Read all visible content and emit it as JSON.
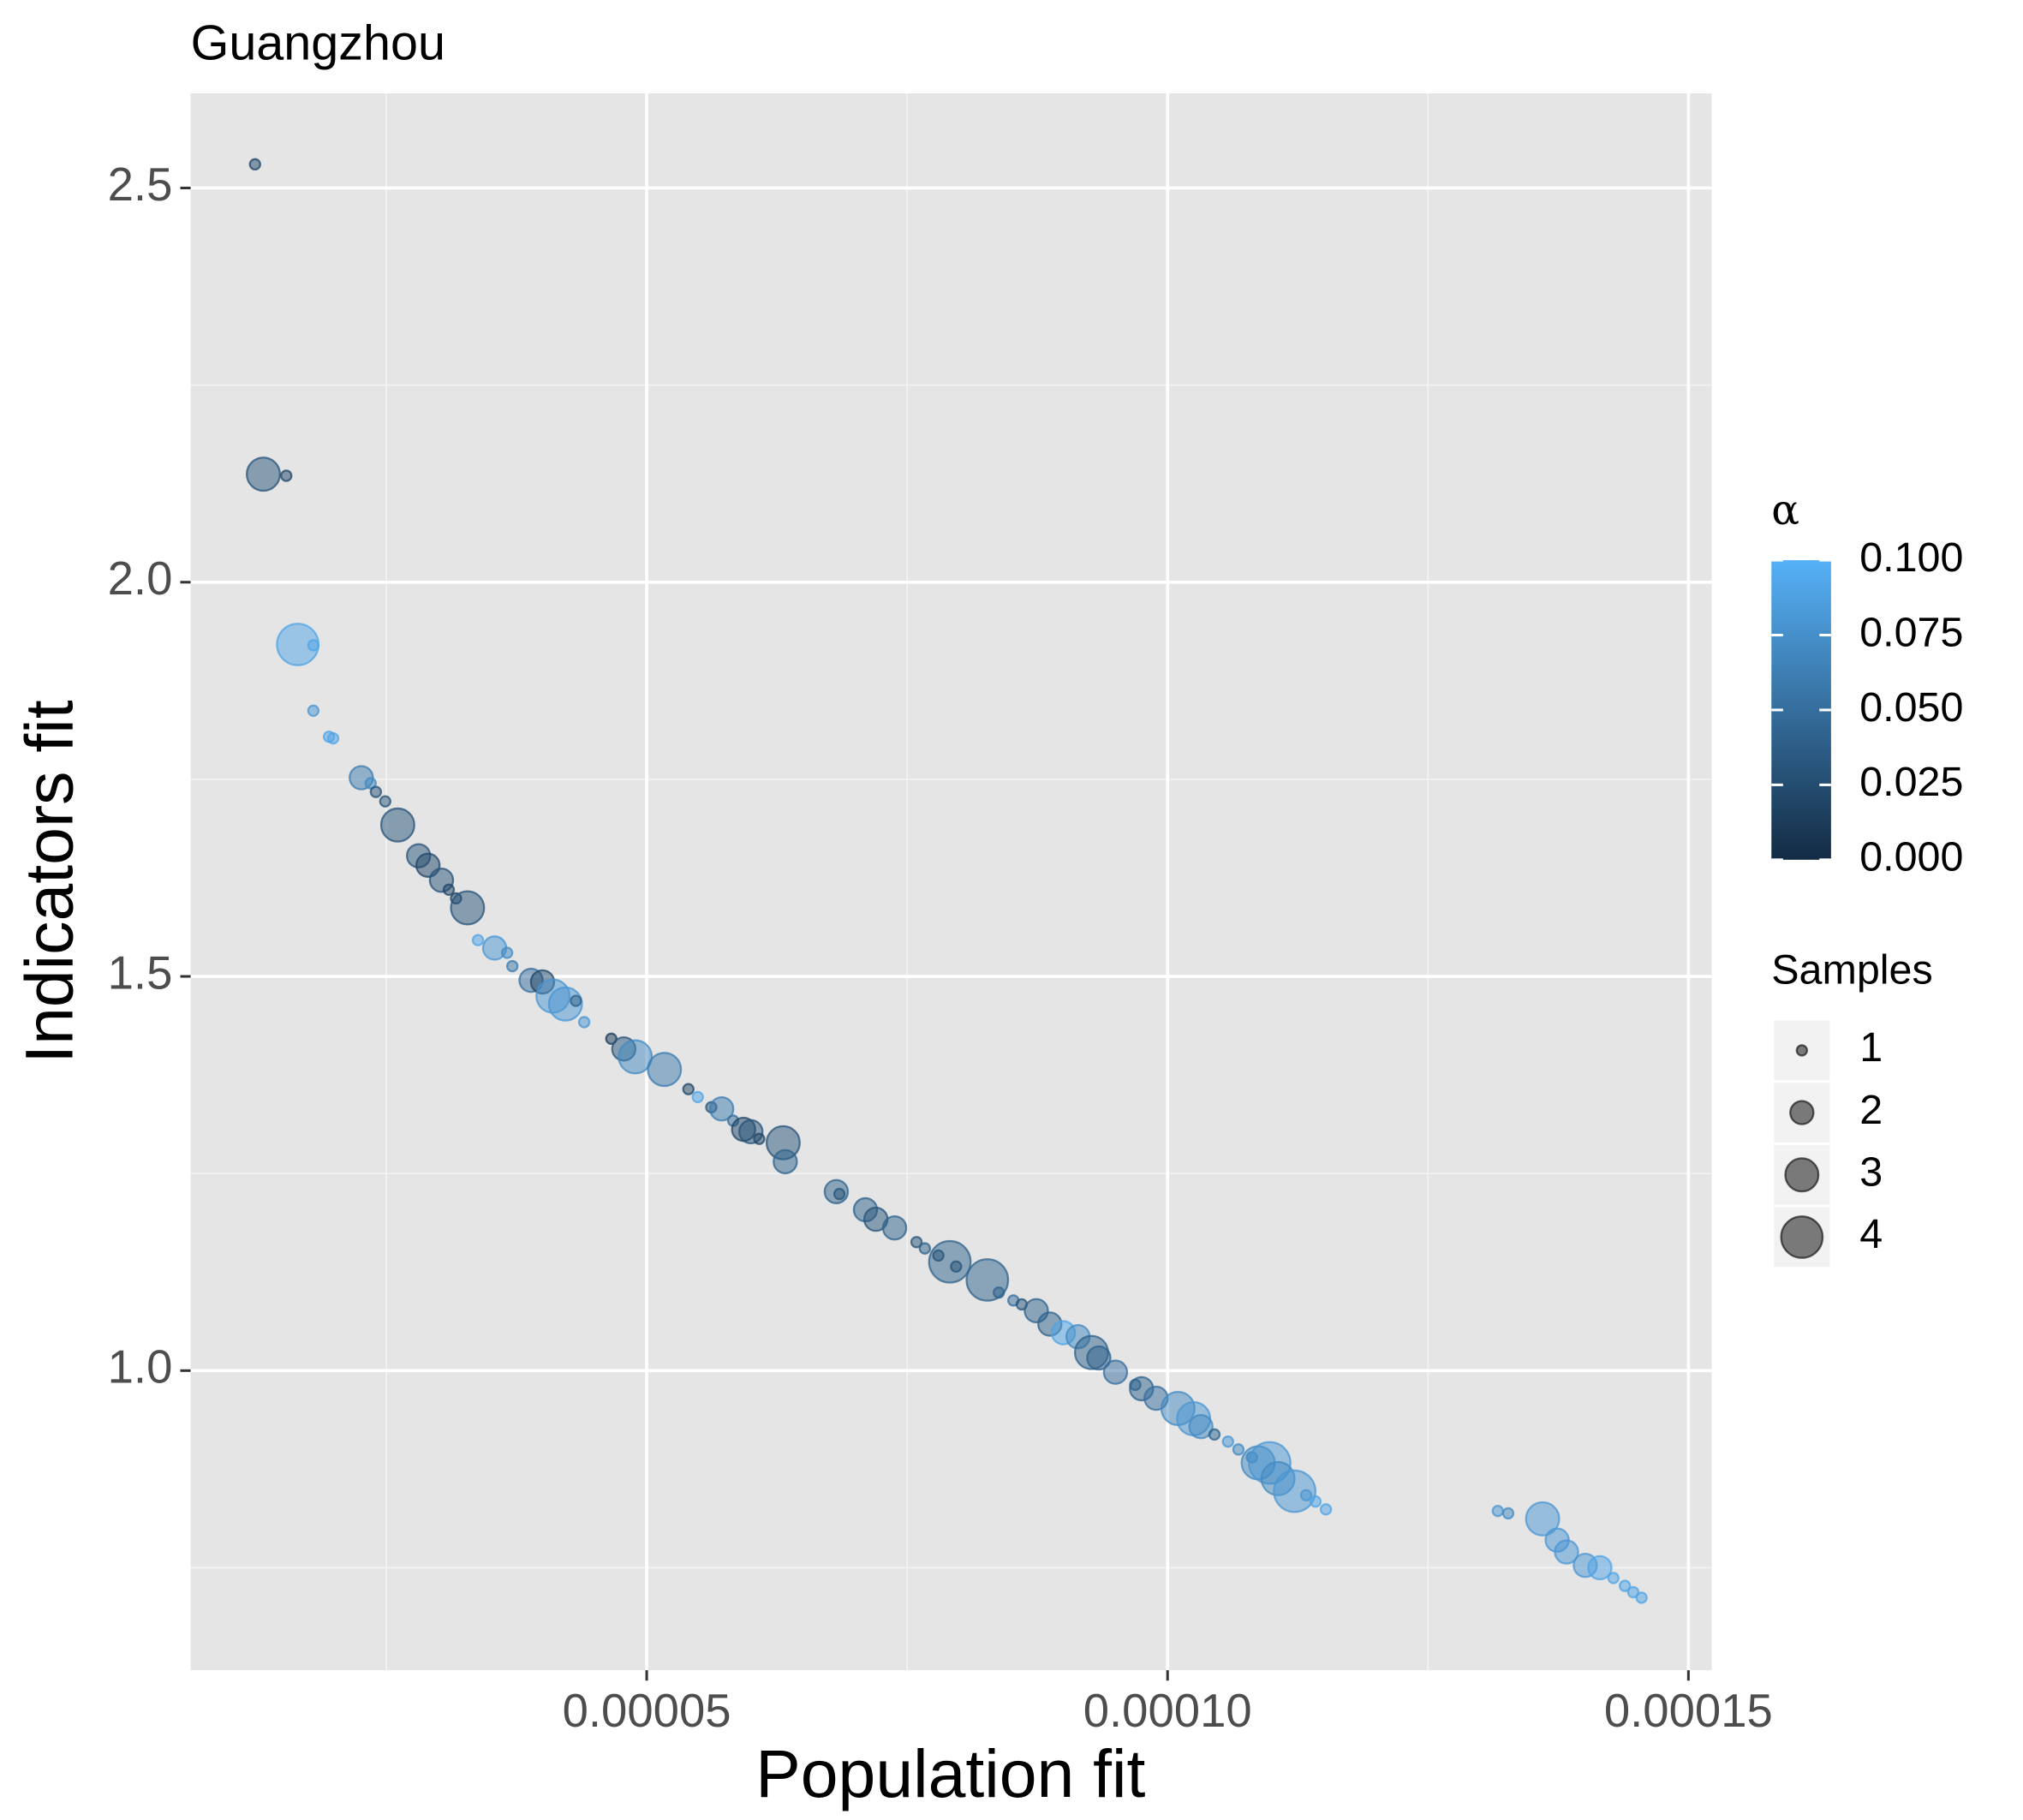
{
  "chart_data": {
    "type": "scatter",
    "title": "Guangzhou",
    "x_label": "Population fit",
    "y_label": "Indicators fit",
    "xlim": [
      6.22e-06,
      0.000152239
    ],
    "ylim": [
      0.62,
      2.62
    ],
    "xticks": [
      5e-05,
      {
        "value": 0.0001,
        "label": "0.00010"
      },
      0.00015
    ],
    "yticks": [
      {
        "value": 1.0,
        "label": "1.0"
      },
      1.5,
      {
        "value": 2.0,
        "label": "2.0"
      },
      2.5
    ],
    "grid": true,
    "color_legend": {
      "title": "α",
      "low_color": "#132B43",
      "high_color": "#56B1F7",
      "lim": [
        0,
        0.1
      ],
      "ticks": [
        {
          "value": 0,
          "label": "0.000"
        },
        {
          "value": 0.025,
          "label": "0.025"
        },
        {
          "value": 0.05,
          "label": "0.050"
        },
        {
          "value": 0.075,
          "label": "0.075"
        },
        {
          "value": 0.1,
          "label": "0.100"
        }
      ]
    },
    "size_legend": {
      "title": "Samples",
      "values": [
        1,
        2,
        3,
        4
      ]
    },
    "series": [
      {
        "x": [
          1.24e-05,
          1.32e-05,
          1.54e-05,
          1.65e-05,
          1.8e-05,
          1.8e-05,
          1.95e-05,
          1.99e-05,
          2.26e-05,
          2.35e-05,
          2.4e-05,
          2.49e-05,
          2.61e-05,
          2.81e-05,
          2.9e-05,
          3.03e-05,
          3.1e-05,
          3.17e-05,
          3.28e-05,
          3.38e-05,
          3.54e-05,
          3.66e-05,
          3.71e-05,
          3.89e-05,
          4e-05,
          4.1e-05,
          4.22e-05,
          4.32e-05,
          4.4e-05,
          4.66e-05,
          4.78e-05,
          4.89e-05,
          5.17e-05,
          5.4e-05,
          5.49e-05,
          5.62e-05,
          5.72e-05,
          5.83e-05,
          5.93e-05,
          6e-05,
          6.08e-05,
          6.31e-05,
          6.33e-05,
          6.82e-05,
          6.85e-05,
          7.1e-05,
          7.2e-05,
          7.38e-05,
          7.59e-05,
          7.67e-05,
          7.8e-05,
          7.91e-05,
          7.97e-05,
          8.27e-05,
          8.38e-05,
          8.52e-05,
          8.6e-05,
          8.74e-05,
          8.87e-05,
          9e-05,
          9.14e-05,
          9.27e-05,
          9.34e-05,
          9.5e-05,
          9.69e-05,
          9.75e-05,
          9.89e-05,
          0.000101,
          0.0001025,
          0.0001032,
          0.0001045,
          0.0001058,
          0.0001068,
          0.0001081,
          0.0001087,
          0.0001098,
          0.0001106,
          0.0001122,
          0.0001133,
          0.0001142,
          0.0001152,
          0.0001317,
          0.0001327,
          0.000136,
          0.0001374,
          0.0001383,
          0.0001401,
          0.0001415,
          0.0001428,
          0.0001439,
          0.0001447,
          0.0001455
        ],
        "values": [
          2.53,
          2.137,
          2.135,
          1.921,
          1.92,
          1.837,
          1.804,
          1.802,
          1.752,
          1.745,
          1.734,
          1.722,
          1.692,
          1.653,
          1.641,
          1.622,
          1.61,
          1.599,
          1.587,
          1.546,
          1.536,
          1.53,
          1.513,
          1.495,
          1.493,
          1.475,
          1.465,
          1.469,
          1.442,
          1.421,
          1.408,
          1.398,
          1.382,
          1.357,
          1.347,
          1.334,
          1.332,
          1.317,
          1.306,
          1.303,
          1.294,
          1.289,
          1.265,
          1.227,
          1.224,
          1.204,
          1.192,
          1.181,
          1.163,
          1.155,
          1.146,
          1.138,
          1.132,
          1.115,
          1.099,
          1.089,
          1.084,
          1.076,
          1.059,
          1.048,
          1.043,
          1.023,
          1.016,
          0.998,
          0.982,
          0.977,
          0.965,
          0.952,
          0.939,
          0.929,
          0.919,
          0.91,
          0.9,
          0.89,
          0.883,
          0.883,
          0.863,
          0.847,
          0.842,
          0.834,
          0.824,
          0.822,
          0.819,
          0.812,
          0.785,
          0.77,
          0.753,
          0.75,
          0.737,
          0.727,
          0.719,
          0.712
        ],
        "sizes": [
          1,
          3,
          1,
          4,
          1,
          1,
          1,
          1,
          2,
          1,
          1,
          1,
          3,
          2,
          2,
          2,
          1,
          1,
          3,
          1,
          2,
          1,
          1,
          2,
          2,
          3,
          3,
          1,
          1,
          1,
          2,
          3,
          3,
          1,
          1,
          1,
          2,
          1,
          2,
          2,
          1,
          3,
          2,
          2,
          1,
          2,
          2,
          2,
          1,
          1,
          1,
          4,
          1,
          4,
          1,
          1,
          1,
          2,
          2,
          2,
          2,
          3,
          2,
          2,
          1,
          2,
          2,
          3,
          3,
          2,
          1,
          1,
          1,
          1,
          3,
          4,
          3,
          4,
          1,
          1,
          1,
          1,
          1,
          3,
          2,
          2,
          2,
          2,
          1,
          1,
          1,
          1
        ],
        "alphas": [
          0.02,
          0.03,
          0.02,
          0.09,
          0.09,
          0.08,
          0.09,
          0.09,
          0.06,
          0.07,
          0.03,
          0.03,
          0.03,
          0.03,
          0.02,
          0.03,
          0.02,
          0.02,
          0.03,
          0.09,
          0.08,
          0.07,
          0.06,
          0.05,
          0.02,
          0.08,
          0.08,
          0.04,
          0.08,
          0.01,
          0.03,
          0.07,
          0.06,
          0.02,
          0.09,
          0.03,
          0.06,
          0.05,
          0.02,
          0.03,
          0.02,
          0.03,
          0.04,
          0.04,
          0.03,
          0.04,
          0.03,
          0.04,
          0.03,
          0.04,
          0.02,
          0.04,
          0.03,
          0.04,
          0.04,
          0.05,
          0.03,
          0.04,
          0.04,
          0.09,
          0.07,
          0.04,
          0.04,
          0.05,
          0.04,
          0.04,
          0.05,
          0.07,
          0.08,
          0.07,
          0.04,
          0.08,
          0.07,
          0.06,
          0.07,
          0.08,
          0.07,
          0.08,
          0.08,
          0.09,
          0.09,
          0.08,
          0.07,
          0.08,
          0.08,
          0.08,
          0.08,
          0.09,
          0.09,
          0.09,
          0.09,
          0.09
        ]
      }
    ]
  }
}
